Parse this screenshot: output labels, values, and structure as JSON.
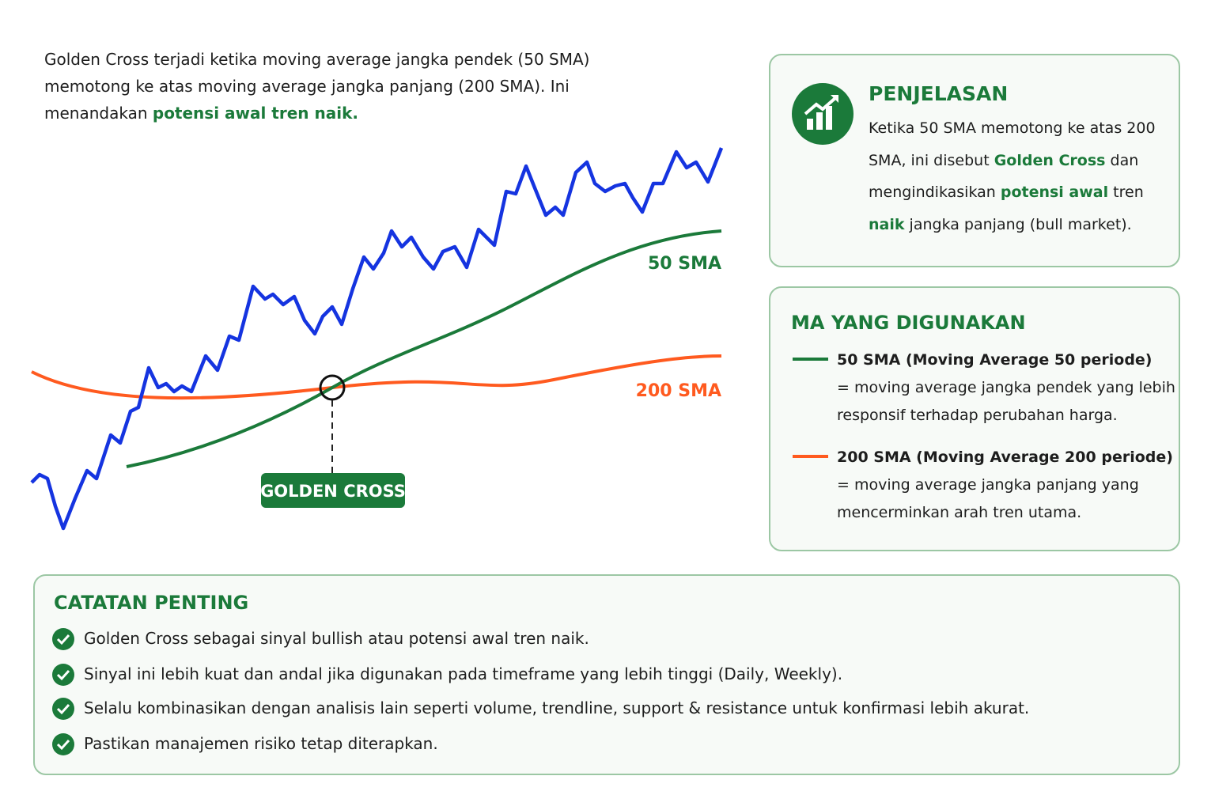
{
  "intro": {
    "text": "Golden Cross terjadi ketika moving average jangka pendek (50 SMA) memotong ke atas moving average jangka panjang (200 SMA). Ini menandakan",
    "highlight": "potensi awal tren naik."
  },
  "chart": {
    "sma50_label": "50 SMA",
    "sma200_label": "200 SMA",
    "cross_label": "GOLDEN CROSS"
  },
  "penjelasan": {
    "title": "PENJELASAN",
    "parts": [
      "Ketika 50 SMA memotong ke atas 200 SMA, ini disebut ",
      "Golden Cross",
      " dan mengindikasikan ",
      "potensi awal",
      " tren ",
      "naik",
      " jangka panjang (bull market)."
    ]
  },
  "ma": {
    "title": "MA YANG DIGUNAKAN",
    "items": [
      {
        "label": "50 SMA (Moving Average 50 periode)",
        "desc": "= moving average jangka pendek yang lebih responsif terhadap perubahan harga."
      },
      {
        "label": "200 SMA (Moving Average 200 periode)",
        "desc": "= moving average jangka panjang yang mencerminkan arah tren utama."
      }
    ]
  },
  "catatan": {
    "title": "CATATAN PENTING",
    "items": [
      "Golden Cross sebagai sinyal bullish atau potensi awal tren naik.",
      "Sinyal ini lebih kuat dan andal jika digunakan pada timeframe yang lebih tinggi (Daily, Weekly).",
      "Selalu kombinasikan dengan analisis lain seperti volume, trendline, support & resistance untuk konfirmasi lebih akurat.",
      "Pastikan manajemen risiko tetap diterapkan."
    ]
  }
}
